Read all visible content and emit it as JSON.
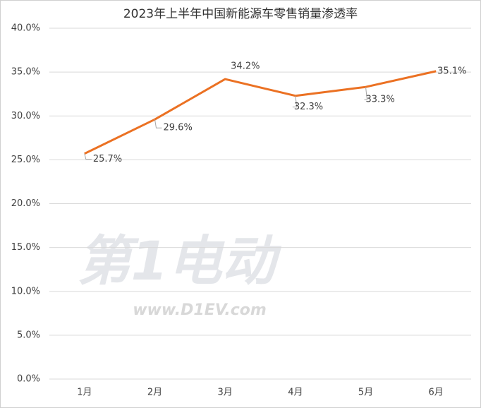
{
  "chart_data": {
    "type": "line",
    "title": "2023年上半年中国新能源车零售销量渗透率",
    "categories": [
      "1月",
      "2月",
      "3月",
      "4月",
      "5月",
      "6月"
    ],
    "series": [
      {
        "color": "#eb7123",
        "values": [
          25.7,
          29.6,
          34.2,
          32.3,
          33.3,
          35.1
        ],
        "value_labels": [
          "25.7%",
          "29.6%",
          "34.2%",
          "32.3%",
          "33.3%",
          "35.1%"
        ]
      }
    ],
    "ylim": [
      0,
      40
    ],
    "yticks": [
      {
        "value": 0,
        "label": "0.0%"
      },
      {
        "value": 5,
        "label": "5.0%"
      },
      {
        "value": 10,
        "label": "10.0%"
      },
      {
        "value": 15,
        "label": "15.0%"
      },
      {
        "value": 20,
        "label": "20.0%"
      },
      {
        "value": 25,
        "label": "25.0%"
      },
      {
        "value": 30,
        "label": "30.0%"
      },
      {
        "value": 35,
        "label": "35.0%"
      },
      {
        "value": 40,
        "label": "40.0%"
      }
    ],
    "grid": true,
    "watermark": [
      "第1电动",
      "www.D1EV.com"
    ]
  }
}
